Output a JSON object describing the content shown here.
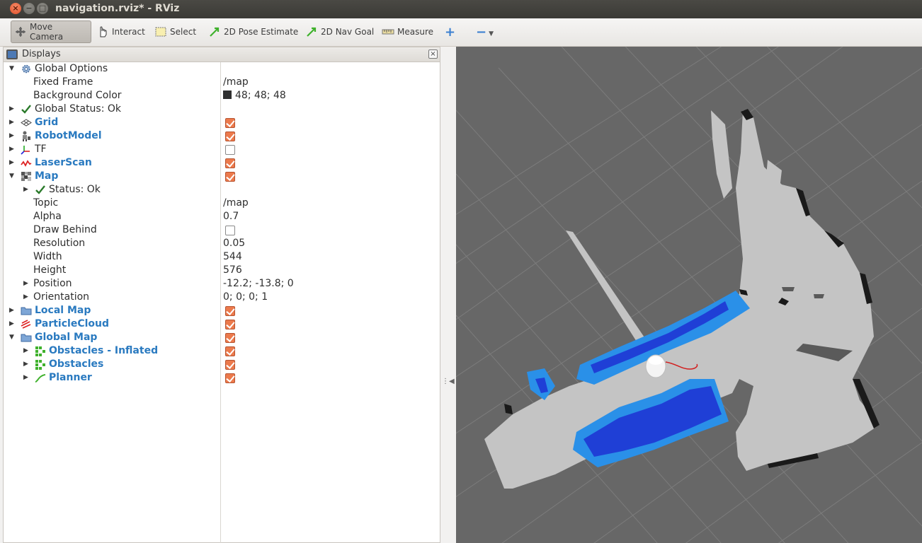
{
  "window": {
    "title": "navigation.rviz* - RViz",
    "buttons": {
      "close": "×",
      "min": "−",
      "max": "□"
    }
  },
  "toolbar": {
    "move_camera": "Move Camera",
    "interact": "Interact",
    "select": "Select",
    "pose_estimate": "2D Pose Estimate",
    "nav_goal": "2D Nav Goal",
    "measure": "Measure",
    "add": "+",
    "remove": "−"
  },
  "displays": {
    "title": "Displays",
    "close": "×",
    "global_options": "Global Options",
    "fixed_frame_label": "Fixed Frame",
    "fixed_frame_value": "/map",
    "background_color_label": "Background Color",
    "background_color_value": "48; 48; 48",
    "background_color_hex": "#303030",
    "global_status": "Global Status: Ok",
    "grid": "Grid",
    "robot_model": "RobotModel",
    "tf": "TF",
    "laser_scan": "LaserScan",
    "map": "Map",
    "map_status": "Status: Ok",
    "topic_label": "Topic",
    "topic_value": "/map",
    "alpha_label": "Alpha",
    "alpha_value": "0.7",
    "draw_behind_label": "Draw Behind",
    "resolution_label": "Resolution",
    "resolution_value": "0.05",
    "width_label": "Width",
    "width_value": "544",
    "height_label": "Height",
    "height_value": "576",
    "position_label": "Position",
    "position_value": "-12.2; -13.8; 0",
    "orientation_label": "Orientation",
    "orientation_value": "0; 0; 0; 1",
    "local_map": "Local Map",
    "particle_cloud": "ParticleCloud",
    "global_map": "Global Map",
    "obstacles_inflated": "Obstacles - Inflated",
    "obstacles": "Obstacles",
    "planner": "Planner",
    "checks": {
      "grid": true,
      "robot_model": true,
      "tf": false,
      "laser_scan": true,
      "map": true,
      "draw_behind": false,
      "local_map": true,
      "particle_cloud": true,
      "global_map": true,
      "obstacles_inflated": true,
      "obstacles": true,
      "planner": true
    }
  },
  "colors": {
    "viewport_bg": "#676767",
    "checkbox_on": "#ec7a4c",
    "label_blue": "#2a7ac0",
    "free_space": "#c4c4c4",
    "obstacle_inflated": "#2a90e8",
    "obstacle": "#1f3fd6"
  }
}
